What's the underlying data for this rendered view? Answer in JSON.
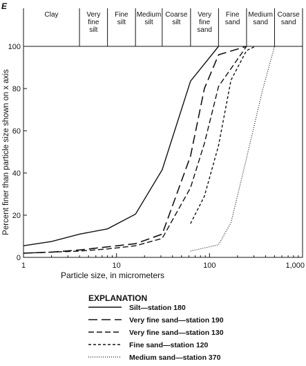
{
  "panel_label": "E",
  "chart_data": {
    "type": "line",
    "xlabel": "Particle size, in micrometers",
    "ylabel": "Percent finer than particle size shown on x axis",
    "xscale": "log",
    "xlim": [
      1,
      1000
    ],
    "ylim": [
      0,
      100
    ],
    "x_ticks": [
      {
        "value": 1,
        "label": "1"
      },
      {
        "value": 10,
        "label": "10"
      },
      {
        "value": 100,
        "label": "100"
      },
      {
        "value": 1000,
        "label": "1,000"
      }
    ],
    "y_ticks": [
      {
        "value": 0,
        "label": "0"
      },
      {
        "value": 20,
        "label": "20"
      },
      {
        "value": 40,
        "label": "40"
      },
      {
        "value": 60,
        "label": "60"
      },
      {
        "value": 80,
        "label": "80"
      },
      {
        "value": 100,
        "label": "100"
      }
    ],
    "size_classes": [
      {
        "lines": [
          "Clay"
        ],
        "from": 1,
        "to": 4
      },
      {
        "lines": [
          "Very",
          "fine",
          "silt"
        ],
        "from": 4,
        "to": 8
      },
      {
        "lines": [
          "Fine",
          "silt"
        ],
        "from": 8,
        "to": 16
      },
      {
        "lines": [
          "Medium",
          "silt"
        ],
        "from": 16,
        "to": 31
      },
      {
        "lines": [
          "Coarse",
          "silt"
        ],
        "from": 31,
        "to": 62.5
      },
      {
        "lines": [
          "Very",
          "fine",
          "sand"
        ],
        "from": 62.5,
        "to": 125
      },
      {
        "lines": [
          "Fine",
          "sand"
        ],
        "from": 125,
        "to": 250
      },
      {
        "lines": [
          "Medium",
          "sand"
        ],
        "from": 250,
        "to": 500
      },
      {
        "lines": [
          "Coarse",
          "sand"
        ],
        "from": 500,
        "to": 1000
      }
    ],
    "legend_title": "EXPLANATION",
    "series": [
      {
        "name": "Silt—station 180",
        "style": "solid",
        "x": [
          1,
          2,
          4,
          8,
          16,
          31,
          62.5,
          125
        ],
        "y": [
          5.5,
          7.5,
          11,
          13.5,
          20.5,
          41.5,
          83.5,
          100
        ]
      },
      {
        "name": "Very fine sand—station 190",
        "style": "longdash",
        "x": [
          1,
          2,
          4,
          8,
          16,
          31,
          62.5,
          88,
          125,
          250
        ],
        "y": [
          2,
          2.5,
          3.5,
          5,
          6.5,
          11,
          48,
          80,
          96,
          100
        ]
      },
      {
        "name": "Very fine sand—station 130",
        "style": "dash",
        "x": [
          1,
          2,
          4,
          8,
          16,
          31,
          62.5,
          88,
          125,
          250
        ],
        "y": [
          2,
          2.5,
          3,
          4,
          5.5,
          9,
          33,
          54,
          81,
          100
        ]
      },
      {
        "name": "Fine sand—station 120",
        "style": "shortdash",
        "x": [
          62.5,
          88,
          125,
          170,
          250,
          310
        ],
        "y": [
          16,
          29,
          53,
          84,
          98,
          100
        ]
      },
      {
        "name": "Medium sand—station 370",
        "style": "dotted",
        "x": [
          62.5,
          125,
          170,
          250,
          370,
          500
        ],
        "y": [
          3,
          6,
          16.5,
          47,
          79,
          100
        ]
      }
    ]
  }
}
